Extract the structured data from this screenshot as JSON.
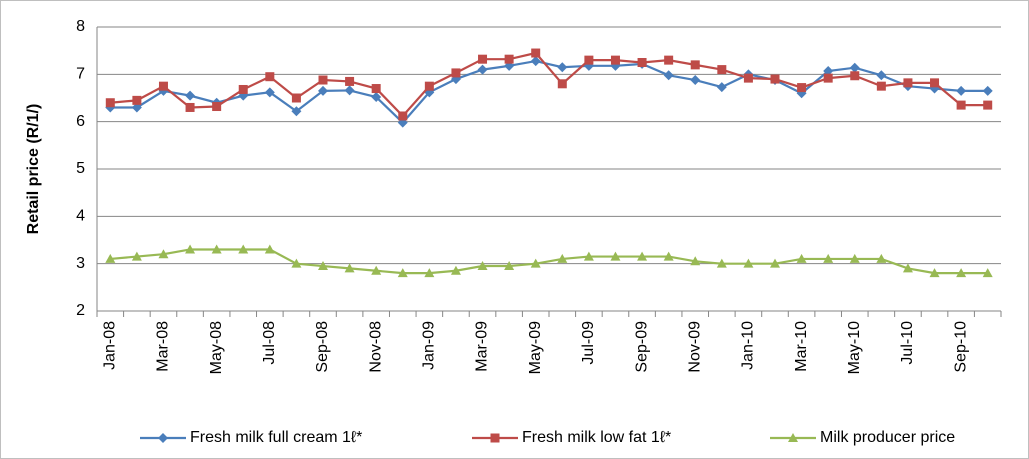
{
  "chart_data": {
    "type": "line",
    "y_label": "Retail price (R/1/)",
    "categories": [
      "Jan-08",
      null,
      "Mar-08",
      null,
      "May-08",
      null,
      "Jul-08",
      null,
      "Sep-08",
      null,
      "Nov-08",
      null,
      "Jan-09",
      null,
      "Mar-09",
      null,
      "May-09",
      null,
      "Jul-09",
      null,
      "Sep-09",
      null,
      "Nov-09",
      null,
      "Jan-10",
      null,
      "Mar-10",
      null,
      "May-10",
      null,
      "Jul-10",
      null,
      "Sep-10",
      null
    ],
    "series": [
      {
        "name": "Fresh milk full cream 1ℓ*",
        "color": "#4a7ebb",
        "marker": "diamond",
        "values": [
          6.3,
          6.3,
          6.65,
          6.55,
          6.4,
          6.55,
          6.62,
          6.22,
          6.65,
          6.66,
          6.52,
          5.98,
          6.62,
          6.9,
          7.1,
          7.18,
          7.28,
          7.15,
          7.18,
          7.18,
          7.22,
          6.98,
          6.88,
          6.73,
          7.0,
          6.88,
          6.6,
          7.07,
          7.14,
          6.98,
          6.75,
          6.7,
          6.65,
          6.65
        ]
      },
      {
        "name": "Fresh milk low fat 1ℓ*",
        "color": "#be4b48",
        "marker": "square",
        "values": [
          6.4,
          6.45,
          6.75,
          6.3,
          6.32,
          6.68,
          6.95,
          6.5,
          6.88,
          6.85,
          6.7,
          6.12,
          6.75,
          7.03,
          7.32,
          7.32,
          7.45,
          6.8,
          7.3,
          7.3,
          7.25,
          7.3,
          7.2,
          7.1,
          6.92,
          6.9,
          6.72,
          6.92,
          6.97,
          6.75,
          6.82,
          6.82,
          6.35,
          6.35
        ]
      },
      {
        "name": "Milk producer price",
        "color": "#98b954",
        "marker": "triangle",
        "values": [
          3.1,
          3.15,
          3.2,
          3.3,
          3.3,
          3.3,
          3.3,
          3.0,
          2.95,
          2.9,
          2.85,
          2.8,
          2.8,
          2.85,
          2.95,
          2.95,
          3.0,
          3.1,
          3.15,
          3.15,
          3.15,
          3.15,
          3.05,
          3.0,
          3.0,
          3.0,
          3.1,
          3.1,
          3.1,
          3.1,
          2.9,
          2.8,
          2.8,
          2.8
        ]
      }
    ],
    "ylim": [
      2,
      8
    ],
    "yticks": [
      2,
      3,
      4,
      5,
      6,
      7,
      8
    ],
    "grid": true,
    "legend": "bottom"
  }
}
